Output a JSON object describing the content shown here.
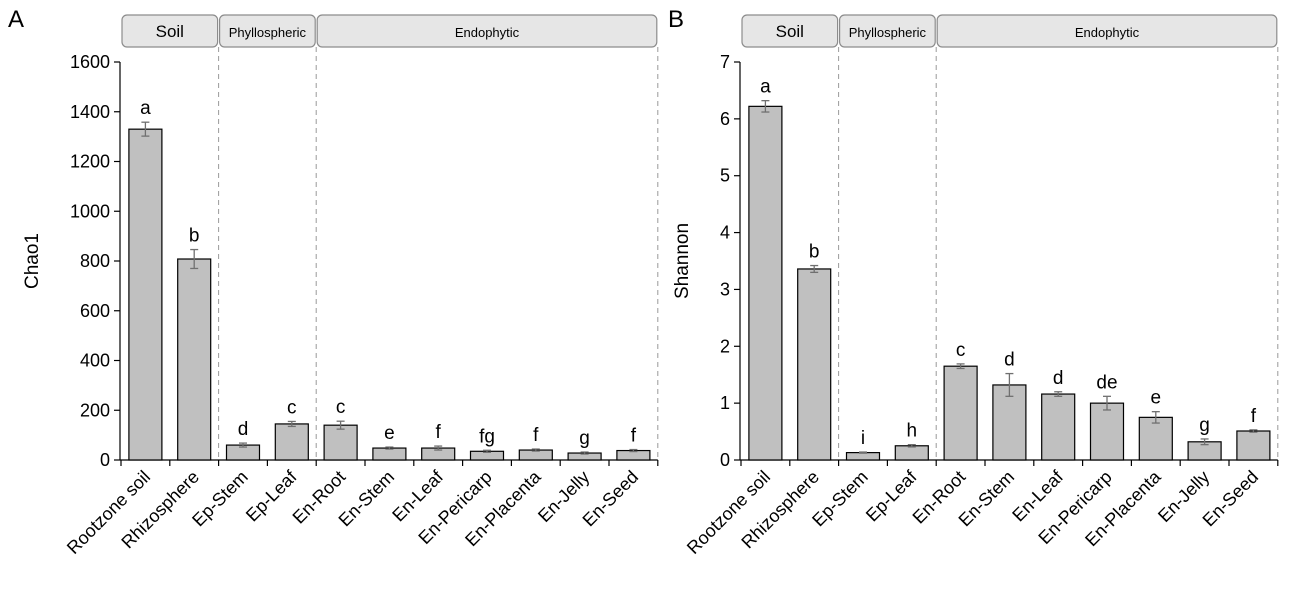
{
  "chart_data": [
    {
      "panel": "A",
      "type": "bar",
      "ylabel": "Chao1",
      "ylim": [
        0,
        1600
      ],
      "yticks": [
        0,
        200,
        400,
        600,
        800,
        1000,
        1200,
        1400,
        1600
      ],
      "categories": [
        "Rootzone soil",
        "Rhizosphere",
        "Ep-Stem",
        "Ep-Leaf",
        "En-Root",
        "En-Stem",
        "En-Leaf",
        "En-Pericarp",
        "En-Placenta",
        "En-Jelly",
        "En-Seed"
      ],
      "values": [
        1330,
        808,
        60,
        145,
        140,
        48,
        48,
        35,
        40,
        28,
        38
      ],
      "errors": [
        28,
        38,
        8,
        10,
        16,
        4,
        8,
        4,
        4,
        4,
        4
      ],
      "letters": [
        "a",
        "b",
        "d",
        "c",
        "c",
        "e",
        "f",
        "fg",
        "f",
        "g",
        "f"
      ],
      "groups": [
        {
          "label": "Soil",
          "start": 0,
          "end": 1
        },
        {
          "label": "Phyllospheric",
          "start": 2,
          "end": 3
        },
        {
          "label": "Endophytic",
          "start": 4,
          "end": 10
        }
      ]
    },
    {
      "panel": "B",
      "type": "bar",
      "ylabel": "Shannon",
      "ylim": [
        0,
        7
      ],
      "yticks": [
        0,
        1,
        2,
        3,
        4,
        5,
        6,
        7
      ],
      "categories": [
        "Rootzone soil",
        "Rhizosphere",
        "Ep-Stem",
        "Ep-Leaf",
        "En-Root",
        "En-Stem",
        "En-Leaf",
        "En-Pericarp",
        "En-Placenta",
        "En-Jelly",
        "En-Seed"
      ],
      "values": [
        6.22,
        3.36,
        0.13,
        0.25,
        1.65,
        1.32,
        1.16,
        1.0,
        0.75,
        0.32,
        0.51
      ],
      "errors": [
        0.1,
        0.06,
        0.01,
        0.02,
        0.04,
        0.2,
        0.04,
        0.12,
        0.1,
        0.05,
        0.02
      ],
      "letters": [
        "a",
        "b",
        "i",
        "h",
        "c",
        "d",
        "d",
        "de",
        "e",
        "g",
        "f"
      ],
      "groups": [
        {
          "label": "Soil",
          "start": 0,
          "end": 1
        },
        {
          "label": "Phyllospheric",
          "start": 2,
          "end": 3
        },
        {
          "label": "Endophytic",
          "start": 4,
          "end": 10
        }
      ]
    }
  ],
  "colors": {
    "bar_fill": "#c0c0c0",
    "bar_stroke": "#000000",
    "group_box_fill": "#e6e6e6",
    "group_box_stroke": "#8c8c8c",
    "divider": "#9a9a9a",
    "error_bar": "#707070"
  }
}
